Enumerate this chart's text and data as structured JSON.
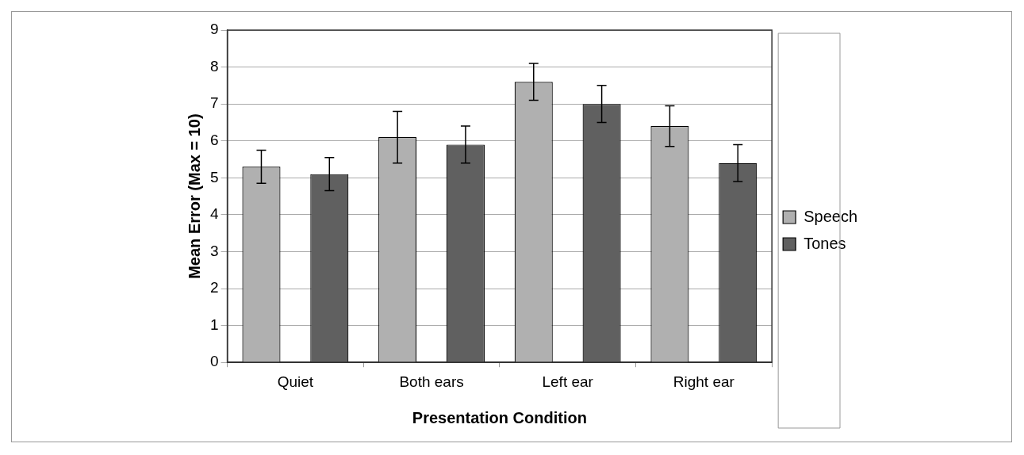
{
  "chart_data": {
    "type": "bar",
    "xlabel": "Presentation Condition",
    "ylabel": "Mean Error (Max = 10)",
    "categories": [
      "Quiet",
      "Both ears",
      "Left ear",
      "Right ear"
    ],
    "series": [
      {
        "name": "Speech",
        "color": "#b0b0b0",
        "values": [
          5.3,
          6.1,
          7.6,
          6.4
        ],
        "errors": [
          0.45,
          0.7,
          0.5,
          0.55
        ]
      },
      {
        "name": "Tones",
        "color": "#606060",
        "values": [
          5.1,
          5.9,
          7.0,
          5.4
        ],
        "errors": [
          0.45,
          0.5,
          0.5,
          0.5
        ]
      }
    ],
    "ylim": [
      0,
      9
    ],
    "yticks": [
      0,
      1,
      2,
      3,
      4,
      5,
      6,
      7,
      8,
      9
    ],
    "grid": "y",
    "legend": "right"
  }
}
